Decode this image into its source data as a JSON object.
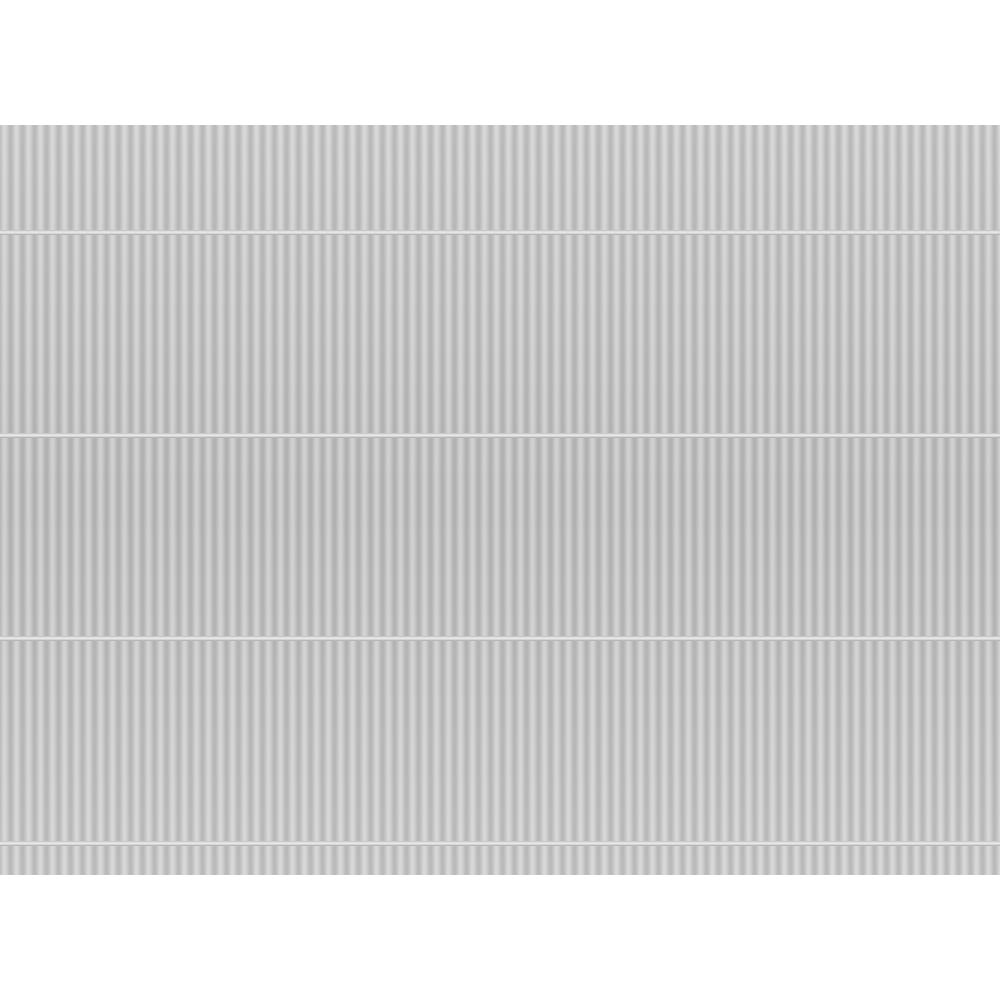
{
  "image": {
    "subject": "corrugated-metal-sheet",
    "colors": {
      "background": "#ffffff",
      "metal": "#c4c4c4",
      "seam": "#e8e8e8"
    }
  }
}
